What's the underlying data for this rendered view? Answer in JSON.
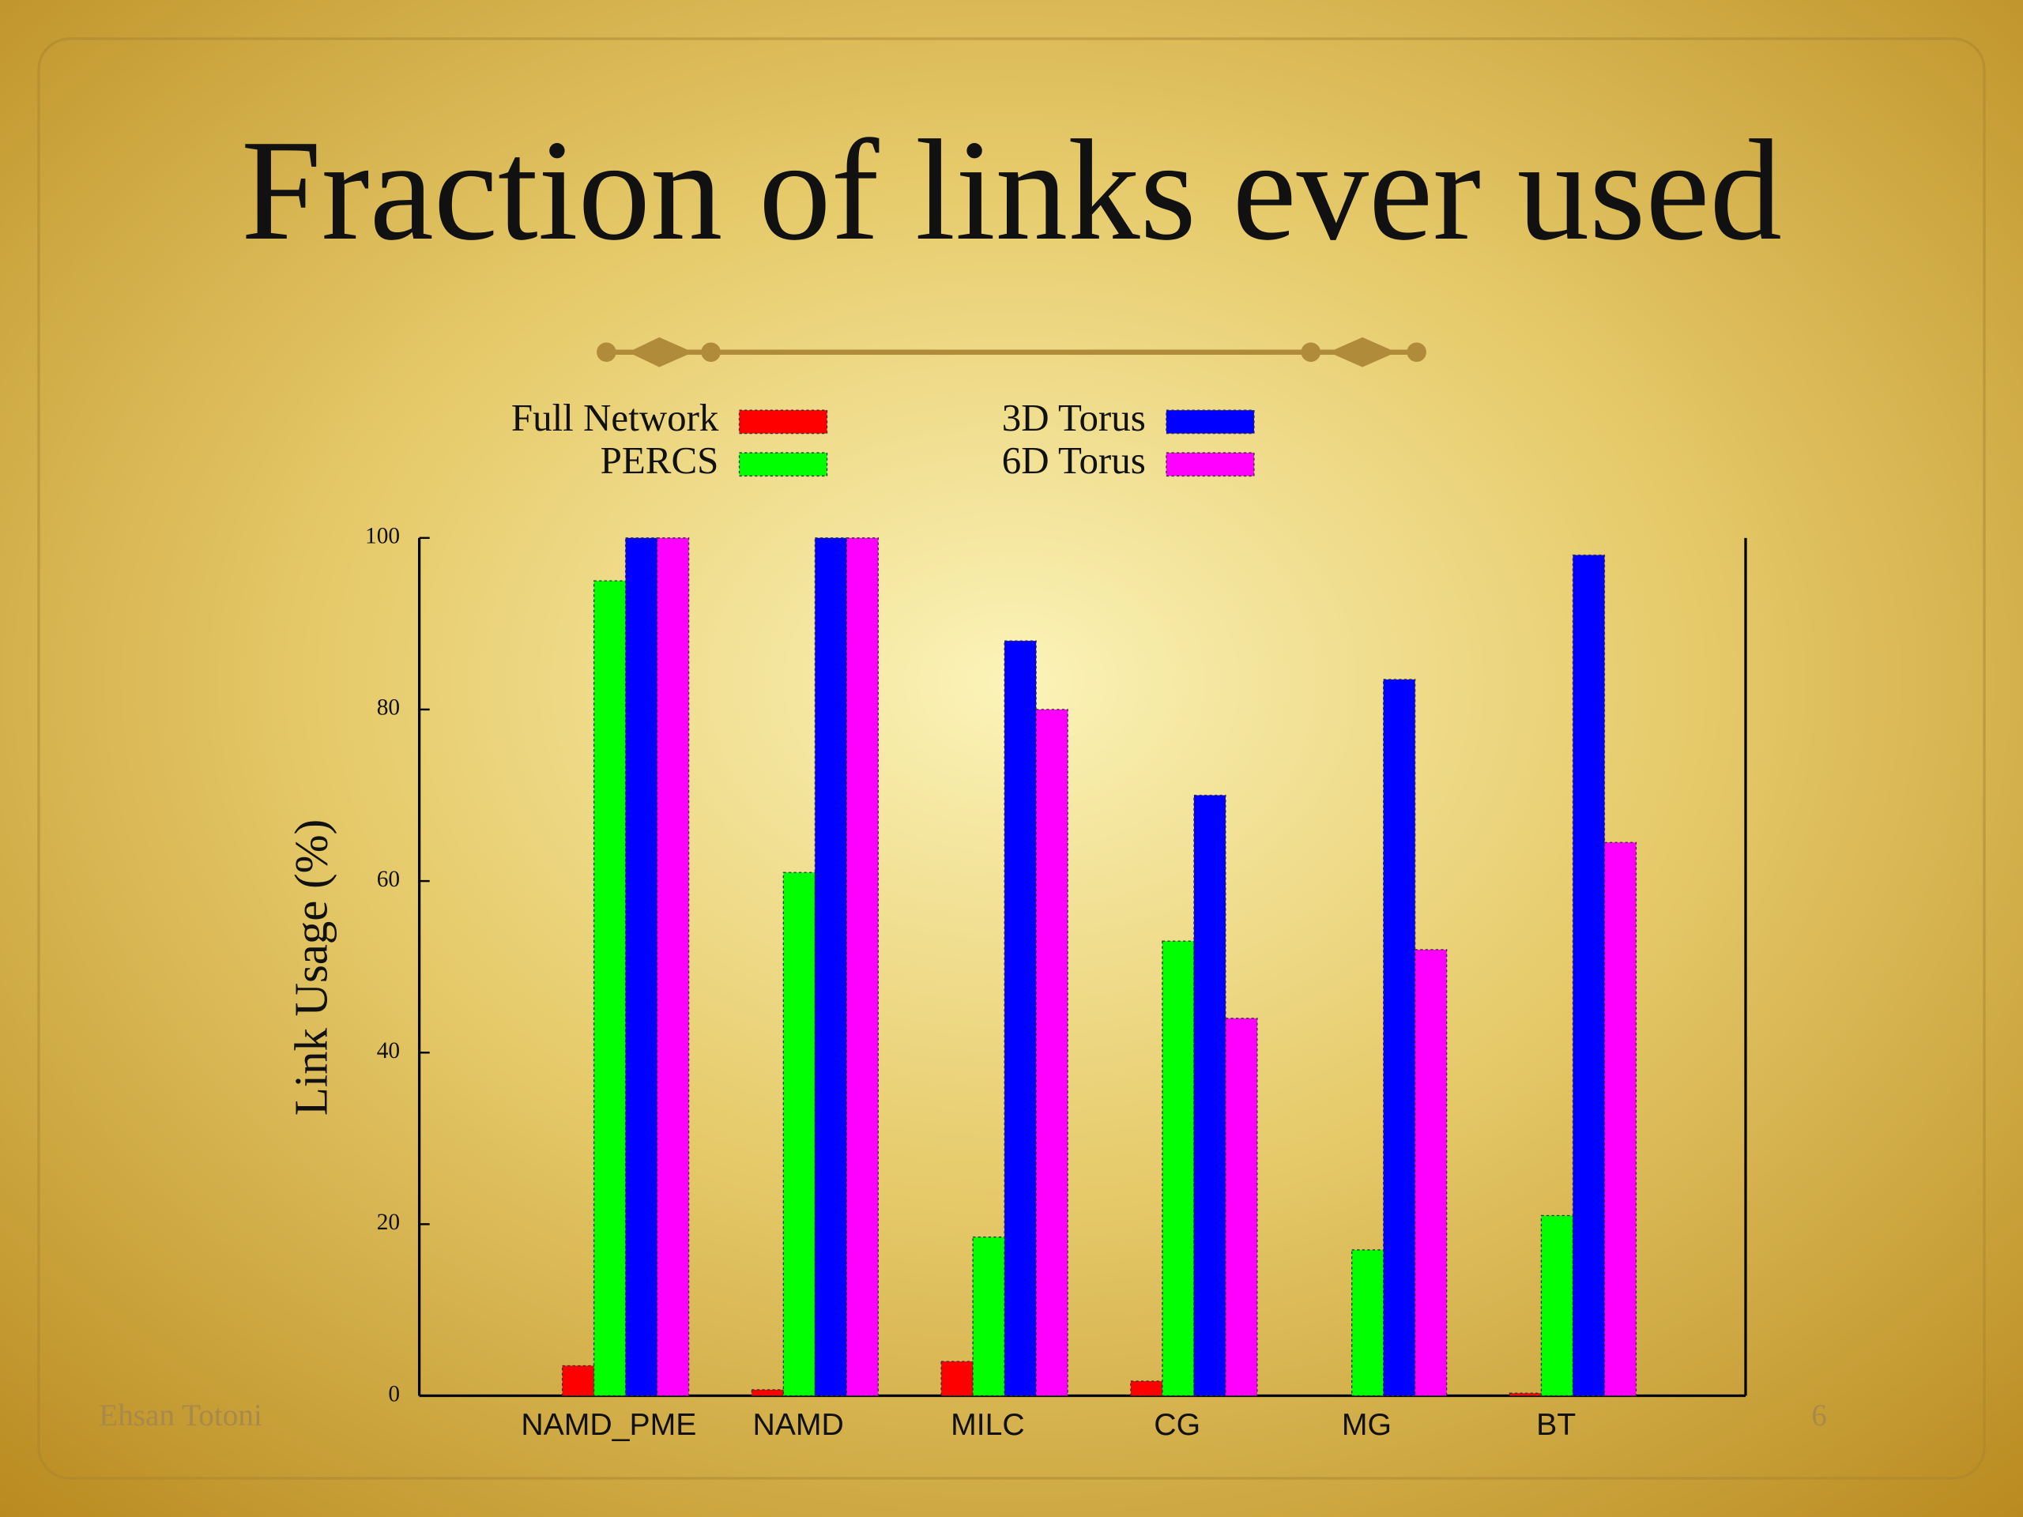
{
  "chart_data": {
    "type": "bar",
    "title": "Fraction of links ever used",
    "ylabel": "Link Usage (%)",
    "categories": [
      "NAMD_PME",
      "NAMD",
      "MILC",
      "CG",
      "MG",
      "BT"
    ],
    "series": [
      {
        "name": "Full Network",
        "color": "#ff0000",
        "values": [
          3.5,
          0.7,
          4,
          1.7,
          0,
          0.3
        ]
      },
      {
        "name": "PERCS",
        "color": "#00ff00",
        "values": [
          95,
          61,
          18.5,
          53,
          17,
          21
        ]
      },
      {
        "name": "3D Torus",
        "color": "#0000ff",
        "values": [
          100,
          100,
          88,
          70,
          83.5,
          98
        ]
      },
      {
        "name": "6D Torus",
        "color": "#ff00ff",
        "values": [
          100,
          100,
          80,
          44,
          52,
          64.5
        ]
      }
    ],
    "ylim": [
      0,
      100
    ],
    "yticks": [
      0,
      20,
      40,
      60,
      80,
      100
    ],
    "grid": false
  },
  "slide": {
    "footer": "Ehsan Totoni",
    "page_number": "6"
  }
}
